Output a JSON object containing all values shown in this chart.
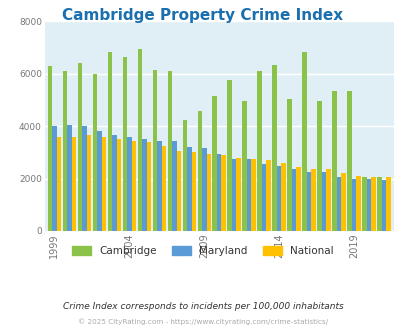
{
  "title": "Cambridge Property Crime Index",
  "title_color": "#1a6faf",
  "subtitle": "Crime Index corresponds to incidents per 100,000 inhabitants",
  "footer": "© 2025 CityRating.com - https://www.cityrating.com/crime-statistics/",
  "years": [
    1999,
    2000,
    2001,
    2002,
    2003,
    2004,
    2005,
    2006,
    2007,
    2008,
    2009,
    2010,
    2011,
    2012,
    2013,
    2014,
    2015,
    2016,
    2017,
    2018,
    2019,
    2020,
    2021
  ],
  "cambridge": [
    6300,
    6100,
    6400,
    6000,
    6850,
    6650,
    6950,
    6150,
    6100,
    4250,
    4600,
    5150,
    5750,
    4950,
    6100,
    6350,
    5050,
    6850,
    4950,
    5350,
    5350,
    2050,
    2050
  ],
  "maryland": [
    4000,
    4050,
    4000,
    3800,
    3650,
    3600,
    3500,
    3450,
    3450,
    3200,
    3150,
    2950,
    2750,
    2750,
    2550,
    2500,
    2350,
    2250,
    2250,
    2050,
    2000,
    2000,
    1950
  ],
  "national": [
    3600,
    3600,
    3650,
    3600,
    3500,
    3450,
    3400,
    3250,
    3050,
    3000,
    2950,
    2900,
    2800,
    2750,
    2700,
    2600,
    2450,
    2350,
    2350,
    2200,
    2100,
    2050,
    2050
  ],
  "cambridge_color": "#8bc34a",
  "maryland_color": "#5b9bd5",
  "national_color": "#ffc000",
  "bg_color": "#e0eff5",
  "ylim": [
    0,
    8000
  ],
  "yticks": [
    0,
    2000,
    4000,
    6000,
    8000
  ],
  "grid_color": "#ffffff",
  "tick_label_color": "#777777",
  "legend_labels": [
    "Cambridge",
    "Maryland",
    "National"
  ],
  "legend_label_color": "#333333"
}
